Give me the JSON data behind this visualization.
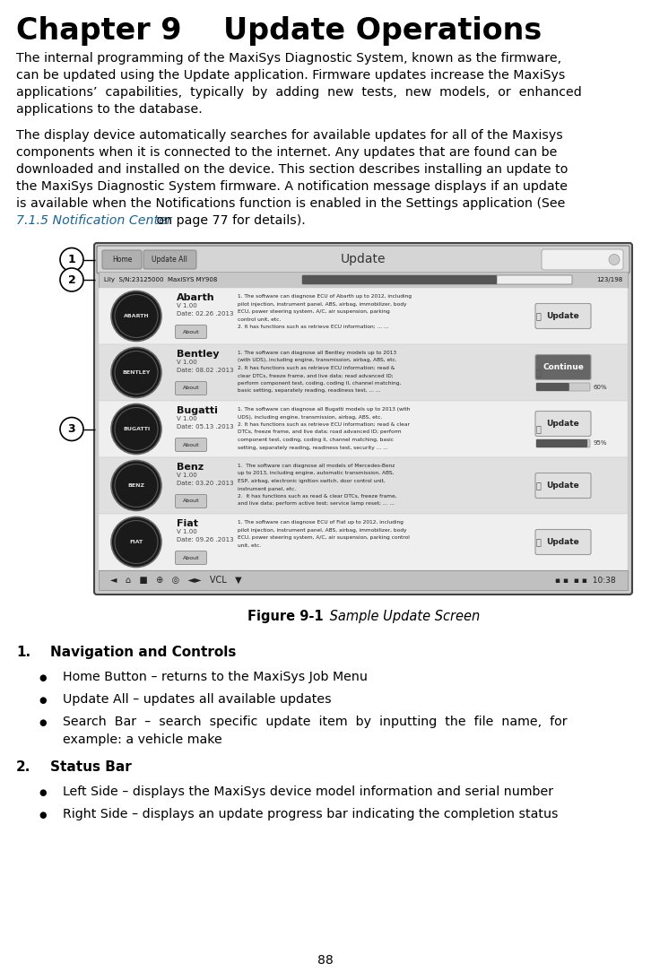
{
  "title": "Chapter 9    Update Operations",
  "para1_lines": [
    "The internal programming of the MaxiSys Diagnostic System, known as the firmware,",
    "can be updated using the Update application. Firmware updates increase the MaxiSys",
    "applications’  capabilities,  typically  by  adding  new  tests,  new  models,  or  enhanced",
    "applications to the database."
  ],
  "para2_lines": [
    "The display device automatically searches for available updates for all of the Maxisys",
    "components when it is connected to the internet. Any updates that are found can be",
    "downloaded and installed on the device. This section describes installing an update to",
    "the MaxiSys Diagnostic System firmware. A notification message displays if an update",
    "is available when the Notifications function is enabled in the Settings application (See"
  ],
  "para2_link": "7.1.5 Notification Center",
  "para2_end": " on page 77 for details).",
  "figure_caption_bold": "Figure 9-1",
  "figure_caption_italic": " Sample Update Screen",
  "section1_label": "1.",
  "section1_title": "Navigation and Controls",
  "section1_bullets": [
    [
      "Home Button – returns to the MaxiSys Job Menu"
    ],
    [
      "Update All – updates all available updates"
    ],
    [
      "Search  Bar  –  search  specific  update  item  by  inputting  the  file  name,  for",
      "example: a vehicle make"
    ]
  ],
  "section2_label": "2.",
  "section2_title": "Status Bar",
  "section2_bullets": [
    [
      "Left Side – displays the MaxiSys device model information and serial number"
    ],
    [
      "Right Side – displays an update progress bar indicating the completion status"
    ]
  ],
  "page_number": "88",
  "bg_color": "#ffffff",
  "text_color": "#000000",
  "link_color": "#1a6496",
  "title_fontsize": 24,
  "body_fontsize": 10.2,
  "section_fontsize": 11,
  "items": [
    {
      "name": "Abarth",
      "logo": "ABARTH",
      "version": "V 1.00",
      "date": "Date: 02.26 .2013",
      "desc": [
        "1. The software can diagnose ECU of Abarth up to 2012, including",
        "pilot injection, instrument panel, ABS, airbag, immobilizer, body",
        "ECU, power steering system, A/C, air suspension, parking",
        "control unit, etc.",
        "2. It has functions such as retrieve ECU information; ... ..."
      ],
      "button": "Update",
      "btn_dark": false,
      "progress": null
    },
    {
      "name": "Bentley",
      "logo": "BENTLEY",
      "version": "V 1.00",
      "date": "Date: 08.02 .2013",
      "desc": [
        "1. The software can diagnose all Bentley models up to 2013",
        "(with UDS), including engine, transmission, airbag, ABS, etc.",
        "2. It has functions such as retrieve ECU information; read &",
        "clear DTCs, freeze frame, and live data; read advanced ID;",
        "perform component test, coding, coding II, channel matching,",
        "basic setting, separately reading, readiness test, ... ..."
      ],
      "button": "Continue",
      "btn_dark": true,
      "progress": 60
    },
    {
      "name": "Bugatti",
      "logo": "BUGATTI",
      "version": "V 1.00",
      "date": "Date: 05.13 .2013",
      "desc": [
        "1. The software can diagnose all Bugatti models up to 2013 (with",
        "UDS), including engine, transmission, airbag, ABS, etc.",
        "2. It has functions such as retrieve ECU information; read & clear",
        "DTCs, freeze frame, and live data; road advanced ID; perform",
        "component test, coding, coding II, channel matching, basic",
        "setting, separately reading, readiness test, security ... ..."
      ],
      "button": "Update",
      "btn_dark": false,
      "progress": 95
    },
    {
      "name": "Benz",
      "logo": "BENZ",
      "version": "V 1.00",
      "date": "Date: 03.20 .2013",
      "desc": [
        "1.  The software can diagnose all models of Mercedes-Benz",
        "up to 2013, including engine, automatic transmission, ABS,",
        "ESP, airbag, electronic ignition switch, door control unit,",
        "instrument panel, etc.",
        "2.  It has functions such as read & clear DTCs, freeze frame,",
        "and live data; perform active test; service lamp reset; ... ..."
      ],
      "button": "Update",
      "btn_dark": false,
      "progress": null
    },
    {
      "name": "Fiat",
      "logo": "FIAT",
      "version": "V 1.00",
      "date": "Date: 09.26 .2013",
      "desc": [
        "1. The software can diagnose ECU of Fiat up to 2012, including",
        "pilot injection, instrument panel, ABS, airbag, immobilizer, body",
        "ECU, power steering system, A/C, air suspension, parking control",
        "unit, etc."
      ],
      "button": "Update",
      "btn_dark": false,
      "progress": null
    }
  ]
}
